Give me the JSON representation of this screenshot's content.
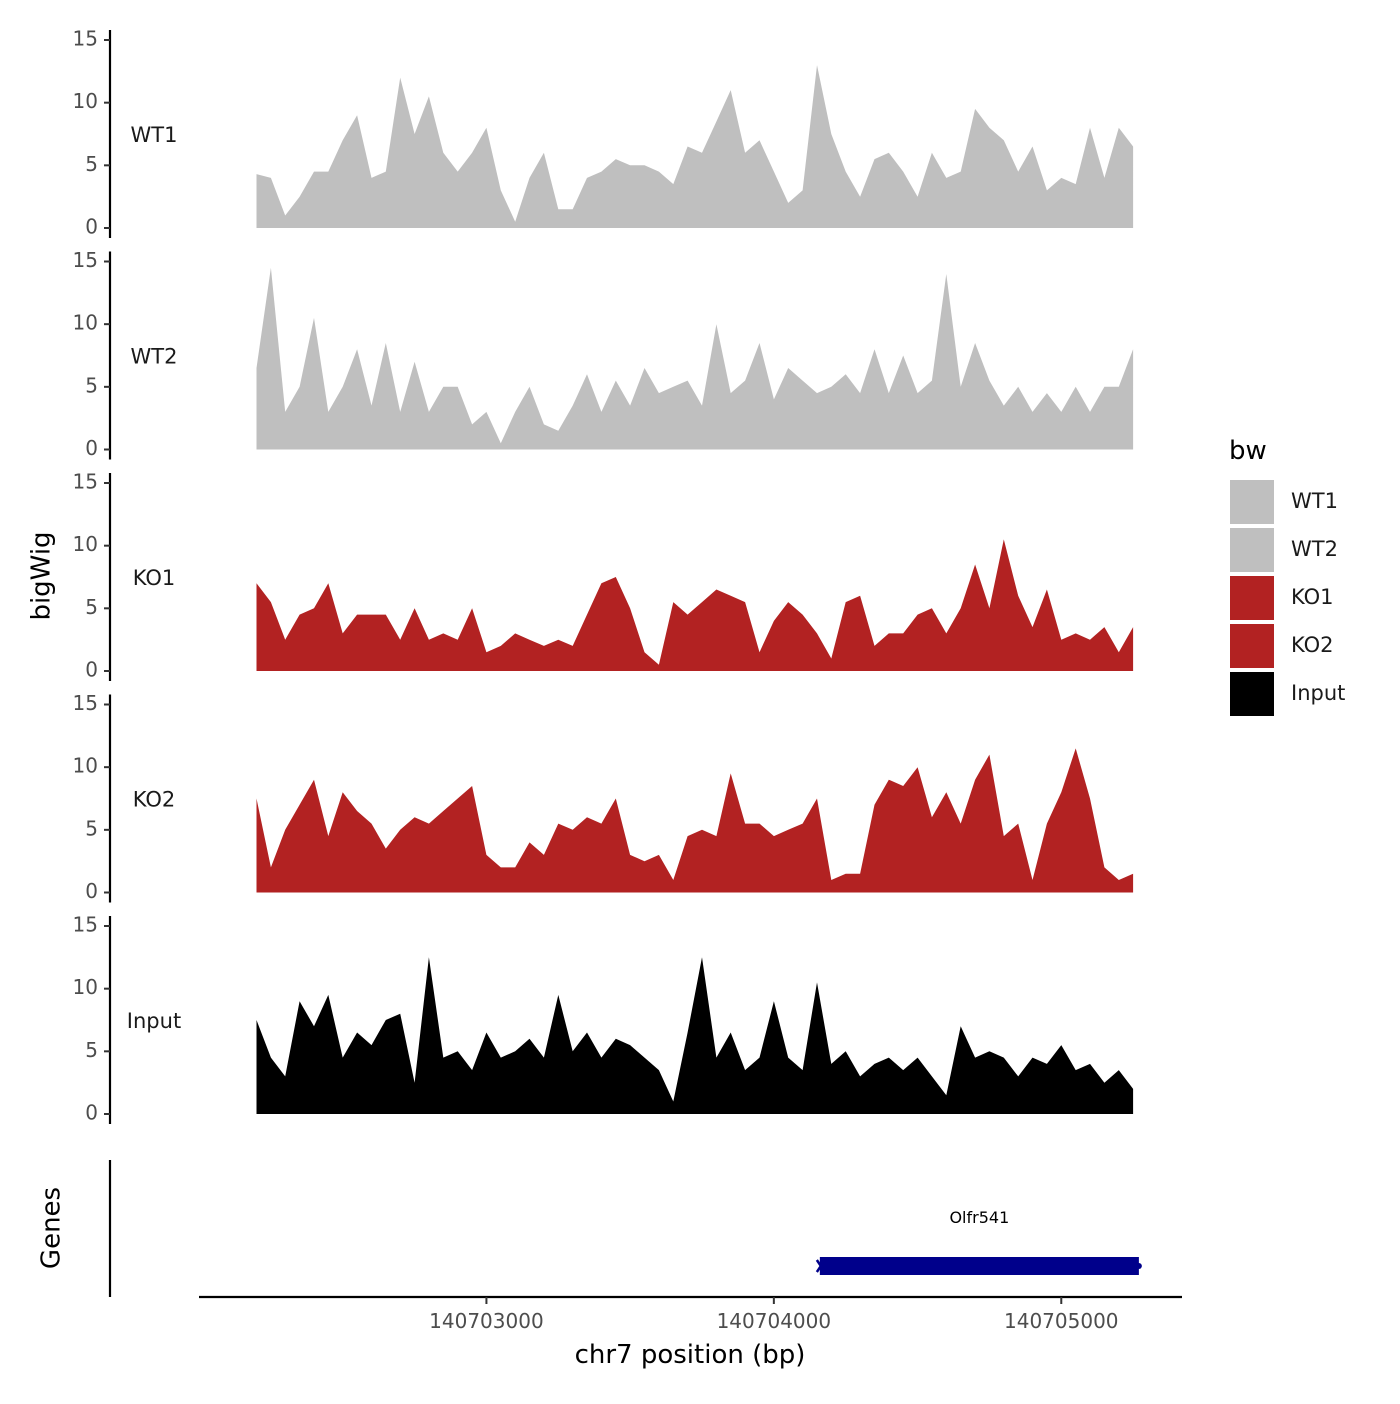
{
  "chart_data": {
    "type": "area",
    "x": [
      140702200,
      140702250,
      140702300,
      140702350,
      140702400,
      140702450,
      140702500,
      140702550,
      140702600,
      140702650,
      140702700,
      140702750,
      140702800,
      140702850,
      140702900,
      140702950,
      140703000,
      140703050,
      140703100,
      140703150,
      140703200,
      140703250,
      140703300,
      140703350,
      140703400,
      140703450,
      140703500,
      140703550,
      140703600,
      140703650,
      140703700,
      140703750,
      140703800,
      140703850,
      140703900,
      140703950,
      140704000,
      140704050,
      140704100,
      140704150,
      140704200,
      140704250,
      140704300,
      140704350,
      140704400,
      140704450,
      140704500,
      140704550,
      140704600,
      140704650,
      140704700,
      140704750,
      140704800,
      140704850,
      140704900,
      140704950,
      140705000,
      140705050,
      140705100,
      140705150,
      140705200,
      140705250
    ],
    "series": [
      {
        "name": "WT1",
        "values": [
          4.3,
          4.0,
          1.0,
          2.5,
          4.5,
          4.5,
          7.0,
          9.0,
          4.0,
          4.5,
          12.0,
          7.5,
          10.5,
          6.0,
          4.5,
          6.0,
          8.0,
          3.0,
          0.5,
          4.0,
          6.0,
          1.5,
          1.5,
          4.0,
          4.5,
          5.5,
          5.0,
          5.0,
          4.5,
          3.5,
          6.5,
          6.0,
          8.5,
          11.0,
          6.0,
          7.0,
          4.5,
          2.0,
          3.0,
          13.0,
          7.5,
          4.5,
          2.5,
          5.5,
          6.0,
          4.5,
          2.5,
          6.0,
          4.0,
          4.5,
          9.5,
          8.0,
          7.0,
          4.5,
          6.5,
          3.0,
          4.0,
          3.5,
          8.0,
          4.0,
          8.0,
          6.5
        ]
      },
      {
        "name": "WT2",
        "values": [
          6.5,
          14.5,
          3.0,
          5.0,
          10.5,
          3.0,
          5.0,
          8.0,
          3.5,
          8.5,
          3.0,
          7.0,
          3.0,
          5.0,
          5.0,
          2.0,
          3.0,
          0.5,
          3.0,
          5.0,
          2.0,
          1.5,
          3.5,
          6.0,
          3.0,
          5.5,
          3.5,
          6.5,
          4.5,
          5.0,
          5.5,
          3.5,
          10.0,
          4.5,
          5.5,
          8.5,
          4.0,
          6.5,
          5.5,
          4.5,
          5.0,
          6.0,
          4.5,
          8.0,
          4.5,
          7.5,
          4.5,
          5.5,
          14.0,
          5.0,
          8.5,
          5.5,
          3.5,
          5.0,
          3.0,
          4.5,
          3.0,
          5.0,
          3.0,
          5.0,
          5.0,
          8.0
        ]
      },
      {
        "name": "KO1",
        "values": [
          7.0,
          5.5,
          2.5,
          4.5,
          5.0,
          7.0,
          3.0,
          4.5,
          4.5,
          4.5,
          2.5,
          5.0,
          2.5,
          3.0,
          2.5,
          5.0,
          1.5,
          2.0,
          3.0,
          2.5,
          2.0,
          2.5,
          2.0,
          4.5,
          7.0,
          7.5,
          5.0,
          1.5,
          0.5,
          5.5,
          4.5,
          5.5,
          6.5,
          6.0,
          5.5,
          1.5,
          4.0,
          5.5,
          4.5,
          3.0,
          1.0,
          5.5,
          6.0,
          2.0,
          3.0,
          3.0,
          4.5,
          5.0,
          3.0,
          5.0,
          8.5,
          5.0,
          10.5,
          6.0,
          3.5,
          6.5,
          2.5,
          3.0,
          2.5,
          3.5,
          1.5,
          3.5
        ]
      },
      {
        "name": "KO2",
        "values": [
          7.5,
          2.0,
          5.0,
          7.0,
          9.0,
          4.5,
          8.0,
          6.5,
          5.5,
          3.5,
          5.0,
          6.0,
          5.5,
          6.5,
          7.5,
          8.5,
          3.0,
          2.0,
          2.0,
          4.0,
          3.0,
          5.5,
          5.0,
          6.0,
          5.5,
          7.5,
          3.0,
          2.5,
          3.0,
          1.0,
          4.5,
          5.0,
          4.5,
          9.5,
          5.5,
          5.5,
          4.5,
          5.0,
          5.5,
          7.5,
          1.0,
          1.5,
          1.5,
          7.0,
          9.0,
          8.5,
          10.0,
          6.0,
          8.0,
          5.5,
          9.0,
          11.0,
          4.5,
          5.5,
          1.0,
          5.5,
          8.0,
          11.5,
          7.5,
          2.0,
          1.0,
          1.5
        ]
      },
      {
        "name": "Input",
        "values": [
          7.5,
          4.5,
          3.0,
          9.0,
          7.0,
          9.5,
          4.5,
          6.5,
          5.5,
          7.5,
          8.0,
          2.5,
          12.5,
          4.5,
          5.0,
          3.5,
          6.5,
          4.5,
          5.0,
          6.0,
          4.5,
          9.5,
          5.0,
          6.5,
          4.5,
          6.0,
          5.5,
          4.5,
          3.5,
          1.0,
          6.5,
          12.5,
          4.5,
          6.5,
          3.5,
          4.5,
          9.0,
          4.5,
          3.5,
          10.5,
          4.0,
          5.0,
          3.0,
          4.0,
          4.5,
          3.5,
          4.5,
          3.0,
          1.5,
          7.0,
          4.5,
          5.0,
          4.5,
          3.0,
          4.5,
          4.0,
          5.5,
          3.5,
          4.0,
          2.5,
          3.5,
          2.0
        ]
      }
    ],
    "colors": {
      "WT1": "#bfbfbf",
      "WT2": "#bfbfbf",
      "KO1": "#b22222",
      "KO2": "#b22222",
      "Input": "#000000"
    },
    "ylim": [
      0,
      15
    ],
    "yticks": [
      0,
      5,
      10,
      15
    ],
    "xlim": [
      140702000,
      140705420
    ],
    "xticks": [
      140703000,
      140704000,
      140705000
    ],
    "ylabel": "bigWig",
    "xlabel": "chr7 position (bp)",
    "legend": {
      "title": "bw",
      "entries": [
        "WT1",
        "WT2",
        "KO1",
        "KO2",
        "Input"
      ],
      "position": "right"
    },
    "gene_track": {
      "ylabel": "Genes",
      "genes": [
        {
          "name": "Olfr541",
          "start": 140704160,
          "end": 140705270,
          "strand": "-",
          "color": "#00008b"
        }
      ]
    },
    "grid": false
  }
}
